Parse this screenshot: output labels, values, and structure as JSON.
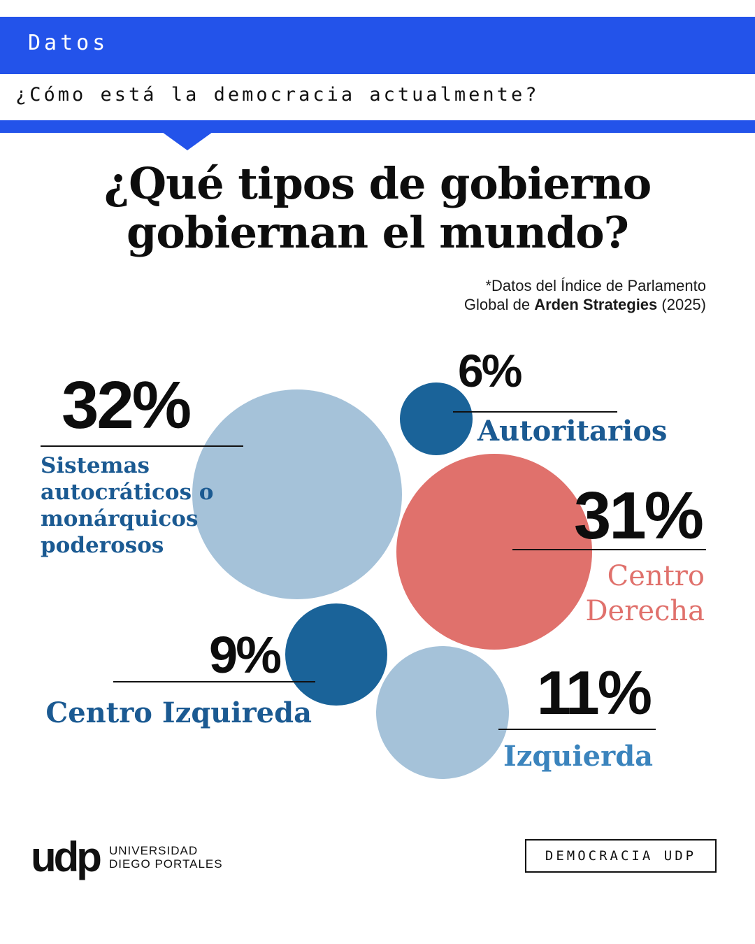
{
  "header": {
    "section_label": "Datos",
    "subtitle": "¿Cómo está la democracia actualmente?"
  },
  "title": {
    "line1": "¿Qué tipos de gobierno",
    "line2": "gobiernan el mundo?"
  },
  "source": {
    "line1": "*Datos del Índice de Parlamento",
    "line2_prefix": "Global de ",
    "line2_bold": "Arden Strategies",
    "line2_suffix": " (2025)"
  },
  "colors": {
    "brand_blue": "#2353ea",
    "light_blue": "#a5c2d9",
    "dark_blue": "#1a6399",
    "coral": "#e0716c",
    "label_blue": "#1b5a92",
    "label_light_blue": "#3b84bd"
  },
  "chart_data": {
    "type": "bubble",
    "unit": "%",
    "items": [
      {
        "category": "Sistemas autocráticos o monárquicos poderosos",
        "value": 32,
        "label": "32%",
        "color": "#a5c2d9",
        "label_lines": [
          "Sistemas",
          "autocráticos o",
          "monárquicos",
          "poderosos"
        ]
      },
      {
        "category": "Autoritarios",
        "value": 6,
        "label": "6%",
        "color": "#1a6399",
        "label_lines": [
          "Autoritarios"
        ]
      },
      {
        "category": "Centro Derecha",
        "value": 31,
        "label": "31%",
        "color": "#e0716c",
        "label_lines": [
          "Centro",
          "Derecha"
        ]
      },
      {
        "category": "Centro Izquireda",
        "value": 9,
        "label": "9%",
        "color": "#1a6399",
        "label_lines": [
          "Centro Izquireda"
        ]
      },
      {
        "category": "Izquierda",
        "value": 11,
        "label": "11%",
        "color": "#a5c2d9",
        "label_lines": [
          "Izquierda"
        ]
      }
    ]
  },
  "footer": {
    "logo_mark": "udp",
    "logo_line1": "UNIVERSIDAD",
    "logo_line2": "DIEGO PORTALES",
    "badge": "DEMOCRACIA UDP"
  }
}
